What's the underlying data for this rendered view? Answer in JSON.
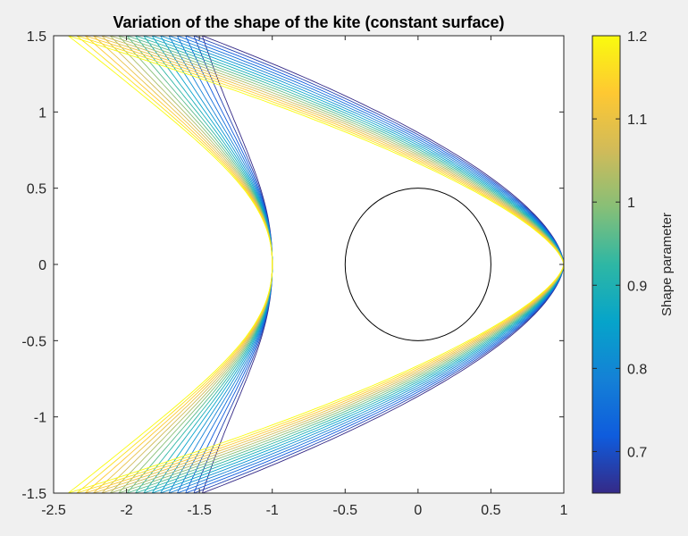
{
  "chart_data": {
    "type": "line",
    "title": "Variation of the shape of the kite (constant surface)",
    "xlabel": "",
    "ylabel": "",
    "xlim": [
      -2.5,
      1
    ],
    "ylim": [
      -1.5,
      1.5
    ],
    "xticks": [
      -2.5,
      -2,
      -1.5,
      -1,
      -0.5,
      0,
      0.5,
      1
    ],
    "yticks": [
      -1.5,
      -1,
      -0.5,
      0,
      0.5,
      1,
      1.5
    ],
    "xtick_labels": [
      "-2.5",
      "-2",
      "-1.5",
      "-1",
      "-0.5",
      "0",
      "0.5",
      "1"
    ],
    "ytick_labels": [
      "-1.5",
      "-1",
      "-0.5",
      "0",
      "0.5",
      "1",
      "1.5"
    ],
    "grid": false,
    "colormap": "parula",
    "colorbar": {
      "label": "Shape parameter",
      "range": [
        0.65,
        1.2
      ],
      "ticks": [
        0.7,
        0.8,
        0.9,
        1,
        1.1,
        1.2
      ],
      "tick_labels": [
        "0.7",
        "0.8",
        "0.9",
        "1",
        "1.1",
        "1.2"
      ]
    },
    "curve_family": {
      "description_param": "shape parameter",
      "parameter_values": [
        0.65,
        0.6844,
        0.7188,
        0.7531,
        0.7875,
        0.8219,
        0.8563,
        0.8906,
        0.925,
        0.9594,
        0.9938,
        1.0281,
        1.0625,
        1.0969,
        1.1313,
        1.1656,
        1.2
      ],
      "nose_x": 1,
      "notch_x": -1,
      "tip_y": 1.5,
      "tip_x_min": -2.4,
      "tip_x_max": -1.48
    },
    "circle": {
      "center": [
        0,
        0
      ],
      "radius": 0.5,
      "color": "#000000"
    },
    "axes_background": "#ffffff",
    "figure_background": "#f0f0f0"
  }
}
